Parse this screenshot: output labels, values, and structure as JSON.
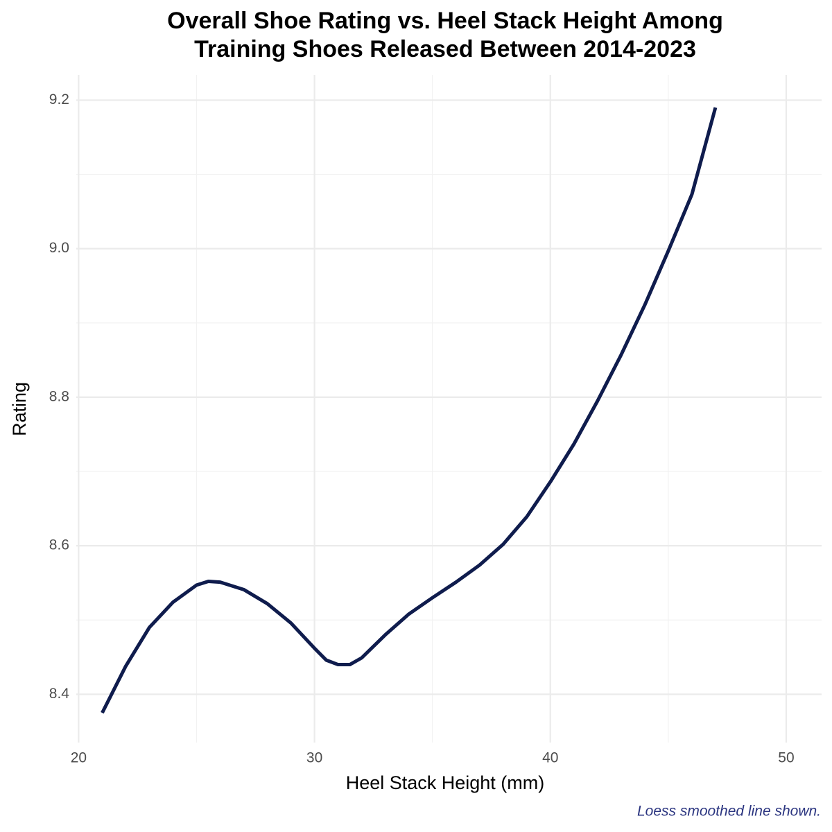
{
  "chart_data": {
    "type": "line",
    "title": [
      "Overall Shoe Rating vs. Heel Stack Height Among",
      "Training Shoes Released Between 2014-2023"
    ],
    "x_label": "Heel Stack Height (mm)",
    "y_label": "Rating",
    "caption": "Loess smoothed line shown.",
    "x": [
      21,
      22,
      23,
      24,
      25,
      25.5,
      26,
      27,
      28,
      29,
      30,
      30.5,
      31,
      31.5,
      32,
      33,
      34,
      35,
      36,
      37,
      38,
      39,
      40,
      41,
      42,
      43,
      44,
      45,
      46,
      47
    ],
    "series": [
      {
        "color": "#0f1c4d",
        "values": [
          8.375,
          8.438,
          8.49,
          8.524,
          8.547,
          8.552,
          8.551,
          8.541,
          8.522,
          8.496,
          8.462,
          8.446,
          8.44,
          8.44,
          8.449,
          8.48,
          8.508,
          8.53,
          8.551,
          8.574,
          8.602,
          8.639,
          8.686,
          8.737,
          8.795,
          8.857,
          8.924,
          8.997,
          9.073,
          9.19
        ]
      }
    ],
    "xlim": [
      19.9,
      51.5
    ],
    "ylim": [
      8.335,
      9.234
    ],
    "xticks": [
      20,
      30,
      40,
      50
    ],
    "yticks": [
      8.4,
      8.6,
      8.8,
      {
        "value": 9.0,
        "label": "9.0"
      },
      9.2
    ],
    "x_minor_grid": [
      25,
      35,
      45
    ],
    "y_minor_grid": [
      8.5,
      8.7,
      8.9,
      9.1
    ],
    "grid": true
  }
}
